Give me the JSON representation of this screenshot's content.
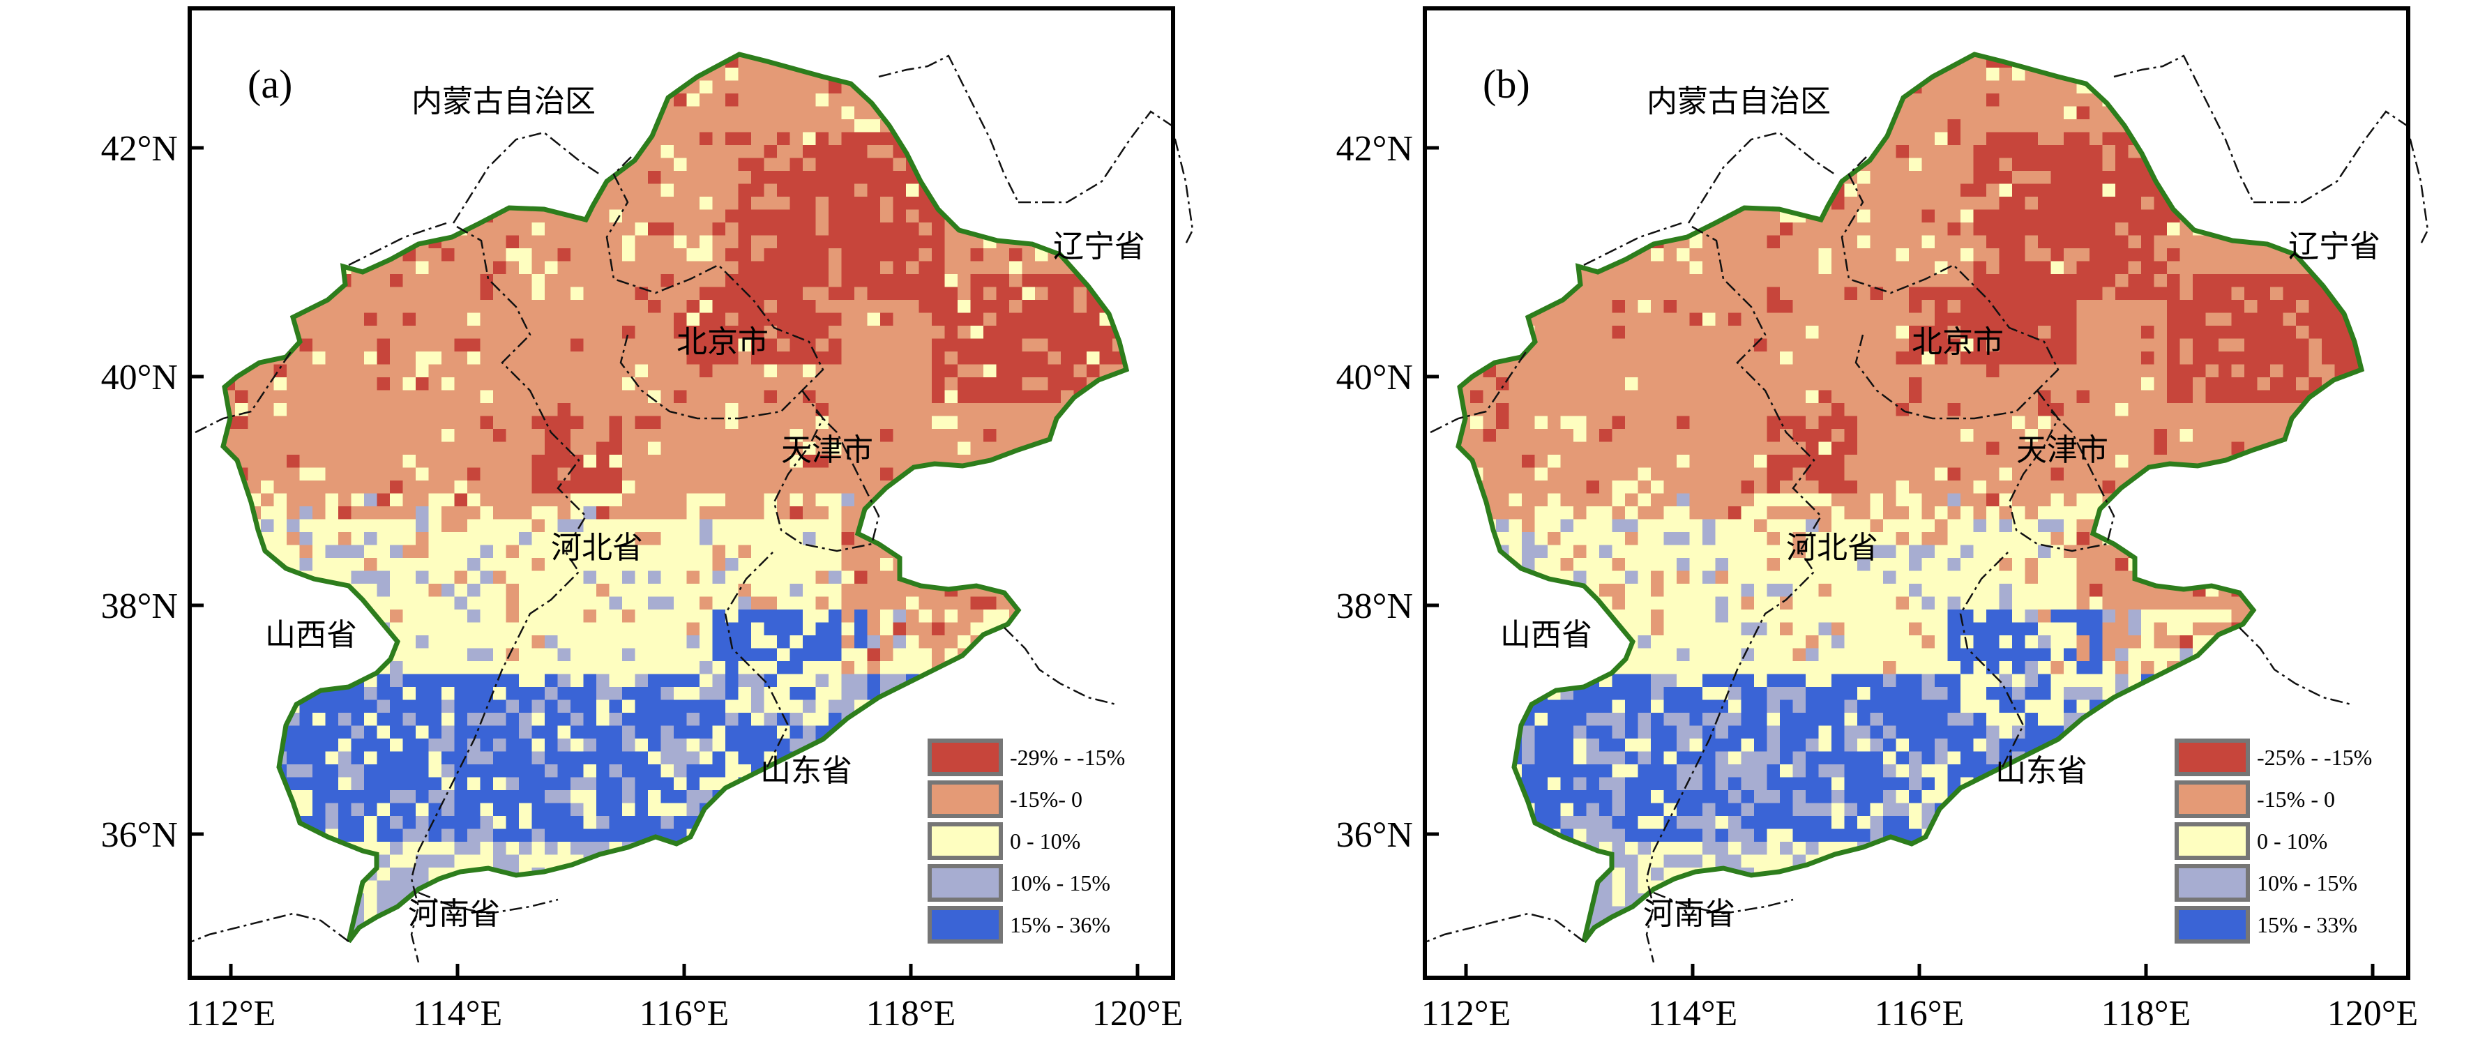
{
  "colors": {
    "c1": "#c7453b",
    "c2": "#e49a76",
    "c3": "#fefec0",
    "c4": "#a7add1",
    "c5": "#3a64d6",
    "border": "#2d7d1c",
    "legend_box_border": "#767676"
  },
  "axes": {
    "x_ticks": [
      "112°E",
      "114°E",
      "116°E",
      "118°E",
      "120°E"
    ],
    "y_ticks": [
      "42°N",
      "40°N",
      "38°N",
      "36°N"
    ],
    "xlim": [
      111.6,
      120.3
    ],
    "ylim": [
      34.6,
      43.2
    ]
  },
  "place_labels": {
    "inner_mongolia": "内蒙古自治区",
    "liaoning": "辽宁省",
    "beijing": "北京市",
    "tianjin": "天津市",
    "hebei": "河北省",
    "shanxi": "山西省",
    "shandong": "山东省",
    "henan": "河南省"
  },
  "panels": [
    {
      "label": "(a)",
      "legend": [
        "-29% - -15%",
        "-15%- 0",
        "0 - 10%",
        "10% - 15%",
        "15% - 36%"
      ],
      "seed": 11
    },
    {
      "label": "(b)",
      "legend": [
        "-25% - -15%",
        "-15% - 0",
        "0 - 10%",
        "10% - 15%",
        "15% - 33%"
      ],
      "seed": 29
    }
  ]
}
